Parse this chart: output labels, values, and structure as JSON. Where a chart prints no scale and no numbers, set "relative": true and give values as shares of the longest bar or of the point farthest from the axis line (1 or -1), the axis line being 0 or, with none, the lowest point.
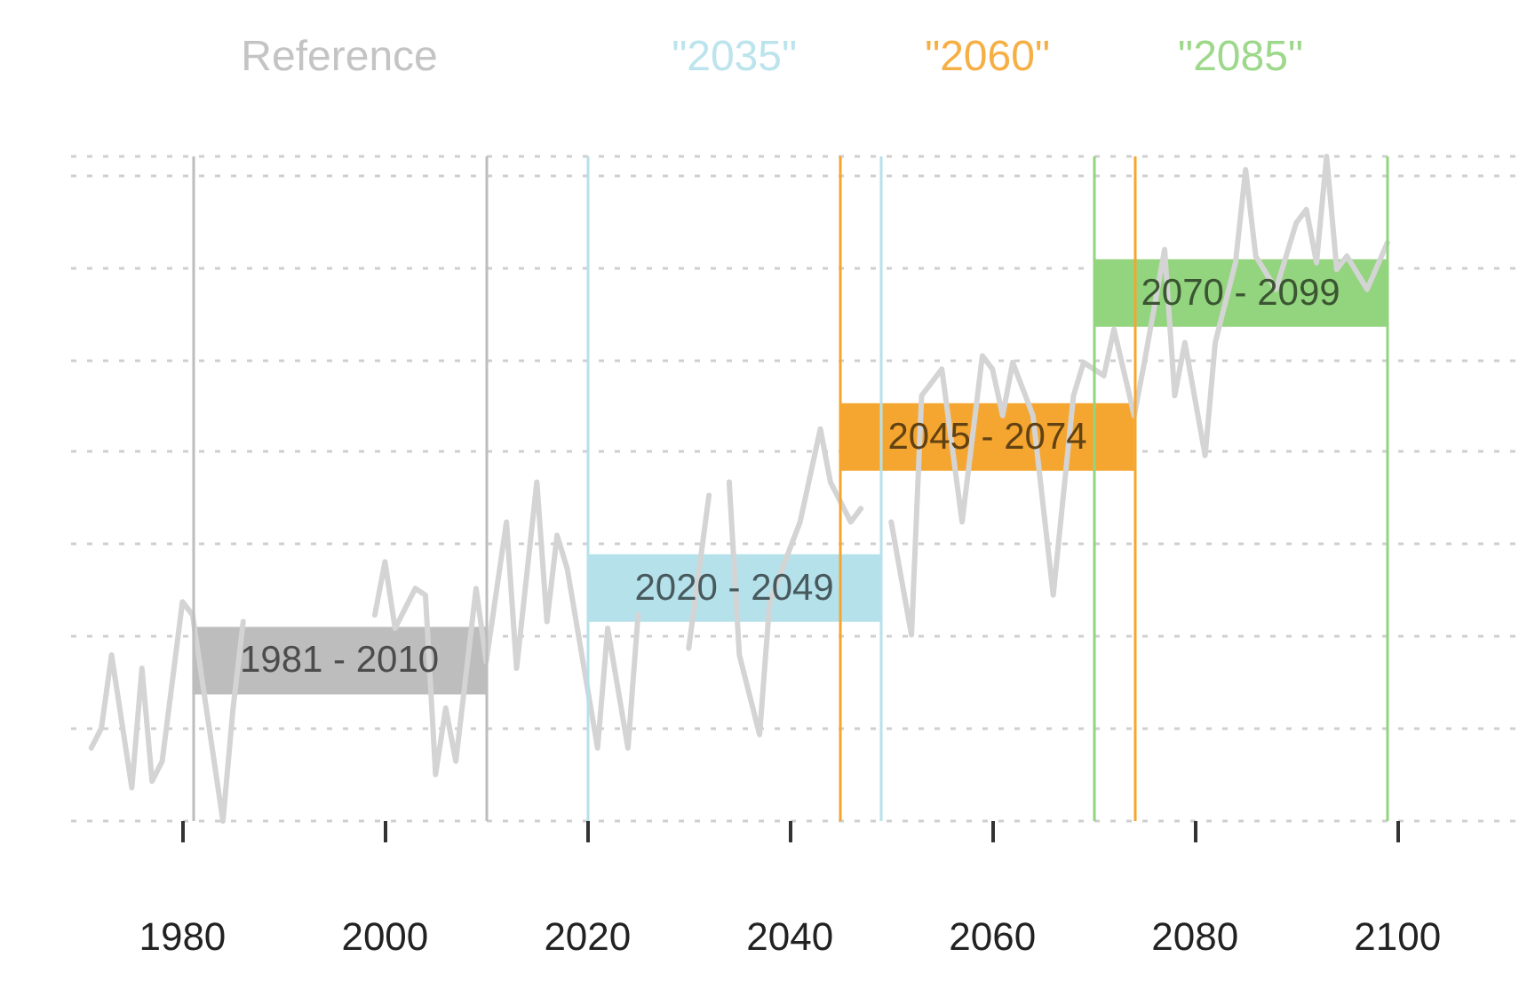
{
  "chart_data": {
    "type": "line",
    "relative": true,
    "x": [
      1971,
      1972,
      1973,
      1975,
      1976,
      1977,
      1978,
      1980,
      1981,
      1984,
      1985,
      1986,
      1988,
      1990,
      1992,
      1994,
      1996,
      1998,
      1999,
      2000,
      2001,
      2003,
      2004,
      2005,
      2006,
      2007,
      2009,
      2010,
      2012,
      2013,
      2015,
      2016,
      2017,
      2018,
      2021,
      2022,
      2024,
      2025,
      2027,
      2029,
      2030,
      2032,
      2033,
      2034,
      2035,
      2037,
      2038,
      2041,
      2043,
      2044,
      2046,
      2047,
      2048,
      2050,
      2052,
      2053,
      2055,
      2057,
      2059,
      2060,
      2061,
      2062,
      2064,
      2066,
      2068,
      2069,
      2071,
      2072,
      2074,
      2075,
      2077,
      2078,
      2079,
      2081,
      2082,
      2084,
      2085,
      2086,
      2088,
      2090,
      2091,
      2092,
      2093,
      2094,
      2095,
      2097,
      2099
    ],
    "series": [
      {
        "color": "#d4d4d4",
        "values": [
          0.11,
          0.14,
          0.25,
          0.05,
          0.23,
          0.06,
          0.09,
          0.33,
          0.31,
          0,
          0.17,
          0.3,
          null,
          null,
          null,
          null,
          null,
          null,
          0.31,
          0.39,
          0.29,
          0.35,
          0.34,
          0.07,
          0.17,
          0.09,
          0.35,
          0.24,
          0.45,
          0.23,
          0.51,
          0.3,
          0.43,
          0.38,
          0.11,
          0.29,
          0.11,
          0.31,
          null,
          null,
          0.26,
          0.49,
          null,
          0.51,
          0.25,
          0.13,
          0.33,
          0.45,
          0.59,
          0.51,
          0.45,
          0.47,
          null,
          0.45,
          0.28,
          0.64,
          0.68,
          0.45,
          0.7,
          0.68,
          0.61,
          0.69,
          0.61,
          0.34,
          0.64,
          0.69,
          0.67,
          0.74,
          0.61,
          0.69,
          0.86,
          0.64,
          0.72,
          0.55,
          0.72,
          0.84,
          0.98,
          0.85,
          0.8,
          0.9,
          0.92,
          0.84,
          1,
          0.83,
          0.85,
          0.8,
          0.87
        ]
      }
    ],
    "xlim": [
      1969,
      2112
    ],
    "xticks": [
      1980,
      2000,
      2020,
      2040,
      2060,
      2080,
      2100
    ],
    "grid": "y",
    "marker": "none",
    "line_style": "solid",
    "ref_lines": [
      {
        "axis": "x",
        "value": 1981,
        "color": "#bdbdbd"
      },
      {
        "axis": "x",
        "value": 2010,
        "color": "#bdbdbd"
      },
      {
        "axis": "x",
        "value": 2020,
        "color": "#b5e1eb"
      },
      {
        "axis": "x",
        "value": 2049,
        "color": "#b5e1eb"
      },
      {
        "axis": "x",
        "value": 2045,
        "color": "#f5a630"
      },
      {
        "axis": "x",
        "value": 2074,
        "color": "#f5a630"
      },
      {
        "axis": "x",
        "value": 2070,
        "color": "#93d47e"
      },
      {
        "axis": "x",
        "value": 2099,
        "color": "#93d47e"
      }
    ],
    "bands": [
      {
        "axis": "x",
        "from": 1981,
        "to": 2010,
        "label": "1981 - 2010",
        "color": "#bdbdbd"
      },
      {
        "axis": "x",
        "from": 2020,
        "to": 2049,
        "label": "2020 - 2049",
        "color": "#b5e1eb"
      },
      {
        "axis": "x",
        "from": 2045,
        "to": 2074,
        "label": "2045 - 2074",
        "color": "#f5a630"
      },
      {
        "axis": "x",
        "from": 2070,
        "to": 2099,
        "label": "2070 - 2099",
        "color": "#93d47e"
      }
    ],
    "annotations": [
      "Reference",
      "\"2035\"",
      "\"2060\"",
      "\"2085\""
    ]
  }
}
